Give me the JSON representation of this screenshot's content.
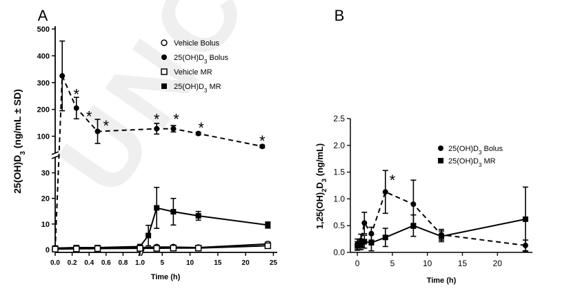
{
  "watermark": "UNCO",
  "chart_data": [
    {
      "panel_label": "A",
      "type": "line",
      "ylabel": "25(OH)D3 (ng/mL ± SD)",
      "xlabel": "Time (h)",
      "axis_break_x": true,
      "axis_break_y": true,
      "x_ticks": [
        "0.0",
        "0.2",
        "0.4",
        "0.6",
        "0.8",
        "1.0",
        "5",
        "10",
        "15",
        "20",
        "25"
      ],
      "y_ticks_lower": [
        "0",
        "10",
        "20",
        "30"
      ],
      "y_ticks_upper": [
        "100",
        "200",
        "300",
        "400",
        "500"
      ],
      "legend": [
        {
          "label": "Vehicle Bolus",
          "marker": "circle-open",
          "line": "solid"
        },
        {
          "label": "25(OH)D3 Bolus",
          "marker": "circle",
          "line": "dashed"
        },
        {
          "label": "Vehicle MR",
          "marker": "square-open",
          "line": "solid"
        },
        {
          "label": "25(OH)D3 MR",
          "marker": "square",
          "line": "solid"
        }
      ],
      "series": [
        {
          "name": "25(OH)D3 Bolus",
          "marker": "circle",
          "line": "dashed",
          "points": [
            {
              "x": 0,
              "y": 0,
              "err": 0
            },
            {
              "x": 0.083,
              "y": 325,
              "err": 130
            },
            {
              "x": 0.25,
              "y": 205,
              "err": 40
            },
            {
              "x": 0.5,
              "y": 118,
              "err": 45
            },
            {
              "x": 4,
              "y": 128,
              "err": 20
            },
            {
              "x": 7,
              "y": 128,
              "err": 12
            },
            {
              "x": 11.5,
              "y": 110,
              "err": 5
            },
            {
              "x": 23,
              "y": 62,
              "err": 5
            }
          ]
        },
        {
          "name": "25(OH)D3 MR",
          "marker": "square",
          "line": "solid",
          "points": [
            {
              "x": 0,
              "y": 0.6,
              "err": 0.3
            },
            {
              "x": 0.25,
              "y": 0.8,
              "err": 0.3
            },
            {
              "x": 0.5,
              "y": 0.8,
              "err": 0.3
            },
            {
              "x": 1.0,
              "y": 1.2,
              "err": 0.3
            },
            {
              "x": 2.5,
              "y": 5.5,
              "err": 4
            },
            {
              "x": 4,
              "y": 16.3,
              "err": 8
            },
            {
              "x": 7,
              "y": 14.8,
              "err": 5.2
            },
            {
              "x": 11.5,
              "y": 13.2,
              "err": 1.7
            },
            {
              "x": 24,
              "y": 9.6,
              "err": 1.2
            }
          ]
        },
        {
          "name": "Vehicle Bolus",
          "marker": "circle-open",
          "line": "solid",
          "points": [
            {
              "x": 0,
              "y": 0.3,
              "err": 0.2
            },
            {
              "x": 0.25,
              "y": 0.5,
              "err": 0.3
            },
            {
              "x": 0.5,
              "y": 0.6,
              "err": 0.3
            },
            {
              "x": 1.0,
              "y": 0.8,
              "err": 0.3
            },
            {
              "x": 4,
              "y": 1.0,
              "err": 0.4
            },
            {
              "x": 7,
              "y": 1.0,
              "err": 0.4
            },
            {
              "x": 11.5,
              "y": 0.8,
              "err": 0.3
            },
            {
              "x": 24,
              "y": 2.2,
              "err": 0.8
            }
          ]
        },
        {
          "name": "Vehicle MR",
          "marker": "square-open",
          "line": "solid",
          "points": [
            {
              "x": 0,
              "y": 0.2,
              "err": 0.2
            },
            {
              "x": 0.25,
              "y": 0.3,
              "err": 0.2
            },
            {
              "x": 0.5,
              "y": 0.4,
              "err": 0.2
            },
            {
              "x": 1.0,
              "y": 0.5,
              "err": 0.2
            },
            {
              "x": 4,
              "y": 0.5,
              "err": 0.2
            },
            {
              "x": 7,
              "y": 0.6,
              "err": 0.2
            },
            {
              "x": 11.5,
              "y": 0.6,
              "err": 0.2
            },
            {
              "x": 24,
              "y": 1.5,
              "err": 0.4
            }
          ]
        }
      ],
      "annotations": [
        {
          "text": "*",
          "x": 0.25,
          "y": 262
        },
        {
          "text": "*",
          "x": 0.4,
          "y": 180
        },
        {
          "text": "*",
          "x": 0.6,
          "y": 145
        },
        {
          "text": "*",
          "x": 4,
          "y": 170
        },
        {
          "text": "*",
          "x": 7.5,
          "y": 170
        },
        {
          "text": "*",
          "x": 12,
          "y": 138
        },
        {
          "text": "*",
          "x": 23,
          "y": 88
        }
      ]
    },
    {
      "panel_label": "B",
      "type": "line",
      "ylabel": "1,25(OH)2D3 (ng/mL)",
      "xlabel": "Time (h)",
      "xlim": [
        -1,
        25
      ],
      "ylim": [
        0,
        2.5
      ],
      "x_ticks": [
        "0",
        "5",
        "10",
        "15",
        "20"
      ],
      "y_ticks": [
        "0.0",
        "0.5",
        "1.0",
        "1.5",
        "2.0",
        "2.5"
      ],
      "legend": [
        {
          "label": "25(OH)D3 Bolus",
          "marker": "circle",
          "line": "dashed"
        },
        {
          "label": "25(OH)D3 MR",
          "marker": "square",
          "line": "solid"
        }
      ],
      "series": [
        {
          "name": "25(OH)D3 Bolus",
          "marker": "circle",
          "line": "dashed",
          "points": [
            {
              "x": 0,
              "y": 0.15,
              "err": 0.1
            },
            {
              "x": 0.5,
              "y": 0.22,
              "err": 0.12
            },
            {
              "x": 1,
              "y": 0.55,
              "err": 0.2
            },
            {
              "x": 2,
              "y": 0.35,
              "err": 0.12
            },
            {
              "x": 4,
              "y": 1.13,
              "err": 0.4
            },
            {
              "x": 8,
              "y": 0.9,
              "err": 0.45
            },
            {
              "x": 12,
              "y": 0.33,
              "err": 0.1
            },
            {
              "x": 24,
              "y": 0.13,
              "err": 0.1
            }
          ]
        },
        {
          "name": "25(OH)D3 MR",
          "marker": "square",
          "line": "solid",
          "points": [
            {
              "x": 0,
              "y": 0.12,
              "err": 0.08
            },
            {
              "x": 0.5,
              "y": 0.15,
              "err": 0.1
            },
            {
              "x": 1,
              "y": 0.2,
              "err": 0.12
            },
            {
              "x": 2,
              "y": 0.18,
              "err": 0.15
            },
            {
              "x": 4,
              "y": 0.28,
              "err": 0.17
            },
            {
              "x": 8,
              "y": 0.5,
              "err": 0.2
            },
            {
              "x": 12,
              "y": 0.3,
              "err": 0.1
            },
            {
              "x": 24,
              "y": 0.62,
              "err": 0.6
            }
          ]
        }
      ],
      "annotations": [
        {
          "text": "*",
          "x": 5,
          "y": 1.38
        }
      ]
    }
  ]
}
